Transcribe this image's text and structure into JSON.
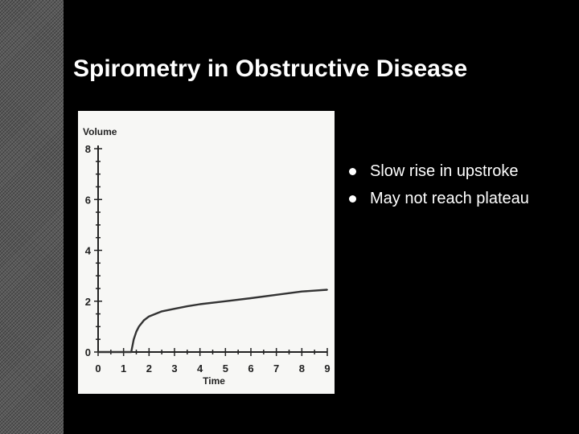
{
  "slide": {
    "title": "Spirometry in Obstructive Disease",
    "bullets": [
      "Slow rise in upstroke",
      "May not reach plateau"
    ]
  },
  "chart_data": {
    "type": "line",
    "title": "",
    "xlabel": "Time",
    "ylabel": "Volume",
    "xlim": [
      0,
      9
    ],
    "ylim": [
      0,
      8
    ],
    "x_ticks": [
      0,
      1,
      2,
      3,
      4,
      5,
      6,
      7,
      8,
      9
    ],
    "y_ticks": [
      0,
      2,
      4,
      6,
      8
    ],
    "grid": false,
    "series": [
      {
        "name": "",
        "x": [
          0,
          1,
          1.3,
          1.4,
          1.5,
          1.6,
          1.8,
          2.0,
          2.5,
          3.0,
          3.5,
          4.0,
          5.0,
          6.0,
          7.0,
          8.0,
          9.0
        ],
        "y": [
          0,
          0,
          0,
          0.5,
          0.8,
          1.0,
          1.25,
          1.4,
          1.6,
          1.7,
          1.8,
          1.88,
          2.0,
          2.12,
          2.25,
          2.38,
          2.45
        ]
      }
    ],
    "line_color": "#333333",
    "axis_color": "#222222"
  }
}
